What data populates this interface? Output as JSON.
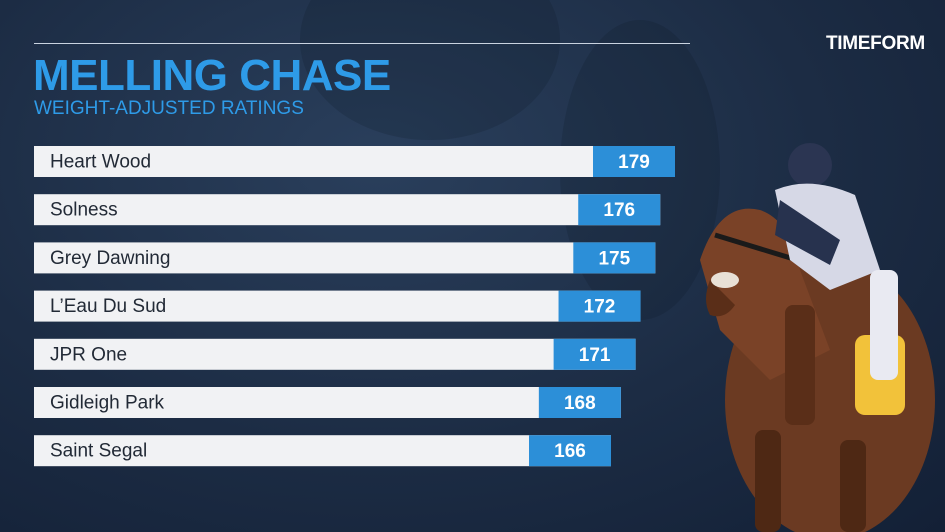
{
  "header": {
    "title": "MELLING CHASE",
    "subtitle": "WEIGHT-ADJUSTED RATINGS",
    "logo": "TIMEFORM"
  },
  "colors": {
    "accent": "#2e9be8",
    "value_box": "#2c8fd8",
    "bar": "#f1f2f4",
    "background": "#1c2c44"
  },
  "chart_data": {
    "type": "bar",
    "orientation": "horizontal",
    "title": "MELLING CHASE",
    "subtitle": "WEIGHT-ADJUSTED RATINGS",
    "categories": [
      "Heart Wood",
      "Solness",
      "Grey Dawning",
      "L’Eau Du Sud",
      "JPR One",
      "Gidleigh Park",
      "Saint Segal"
    ],
    "values": [
      179,
      176,
      175,
      172,
      171,
      168,
      166
    ],
    "grid": false,
    "legend": "none"
  }
}
